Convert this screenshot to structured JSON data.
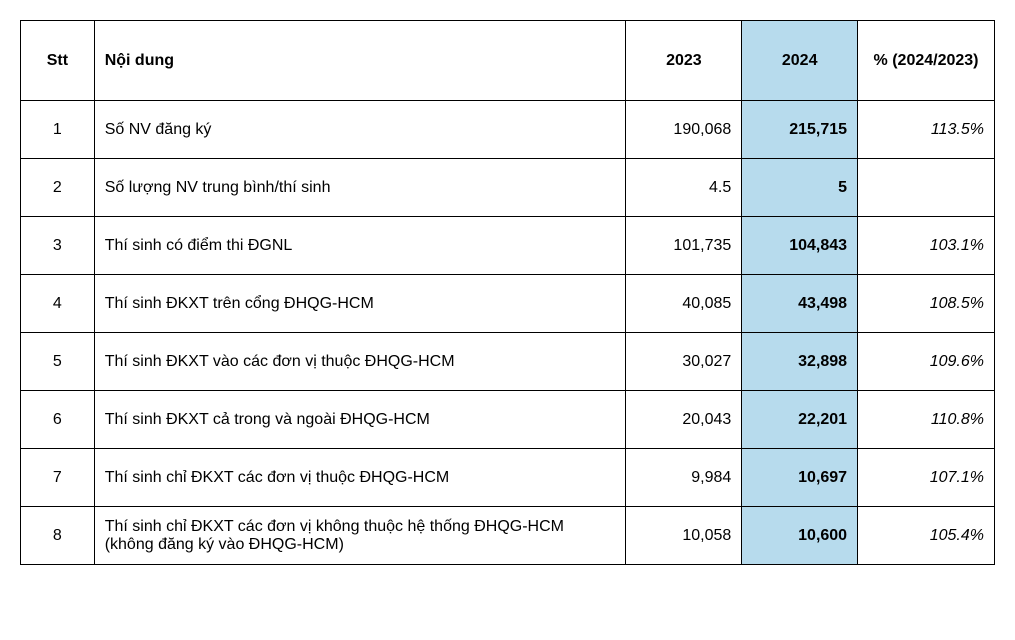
{
  "table": {
    "columns": {
      "stt": "Stt",
      "nd": "Nội dung",
      "y2023": "2023",
      "y2024": "2024",
      "pct": "%\n(2024/2023)"
    },
    "highlight_color": "#b7dbed",
    "border_color": "#000000",
    "rows": [
      {
        "stt": "1",
        "nd": "Số NV đăng ký",
        "y2023": "190,068",
        "y2024": "215,715",
        "pct": "113.5%"
      },
      {
        "stt": "2",
        "nd": "Số  lượng NV trung bình/thí sinh",
        "y2023": "4.5",
        "y2024": "5",
        "pct": ""
      },
      {
        "stt": "3",
        "nd": "Thí sinh có điểm thi ĐGNL",
        "y2023": "101,735",
        "y2024": "104,843",
        "pct": "103.1%"
      },
      {
        "stt": "4",
        "nd": "Thí sinh ĐKXT trên cổng ĐHQG-HCM",
        "y2023": "40,085",
        "y2024": "43,498",
        "pct": "108.5%"
      },
      {
        "stt": "5",
        "nd": "Thí sinh ĐKXT vào các đơn vị thuộc ĐHQG-HCM",
        "y2023": "30,027",
        "y2024": "32,898",
        "pct": "109.6%"
      },
      {
        "stt": "6",
        "nd": "Thí sinh ĐKXT cả trong và ngoài ĐHQG-HCM",
        "y2023": "20,043",
        "y2024": "22,201",
        "pct": "110.8%"
      },
      {
        "stt": "7",
        "nd": "Thí sinh chỉ ĐKXT các đơn vị thuộc ĐHQG-HCM",
        "y2023": "9,984",
        "y2024": "10,697",
        "pct": "107.1%"
      },
      {
        "stt": "8",
        "nd": "Thí sinh chỉ ĐKXT các đơn vị không thuộc  hệ thống ĐHQG-HCM (không đăng ký vào ĐHQG-HCM)",
        "y2023": "10,058",
        "y2024": "10,600",
        "pct": "105.4%"
      }
    ]
  }
}
